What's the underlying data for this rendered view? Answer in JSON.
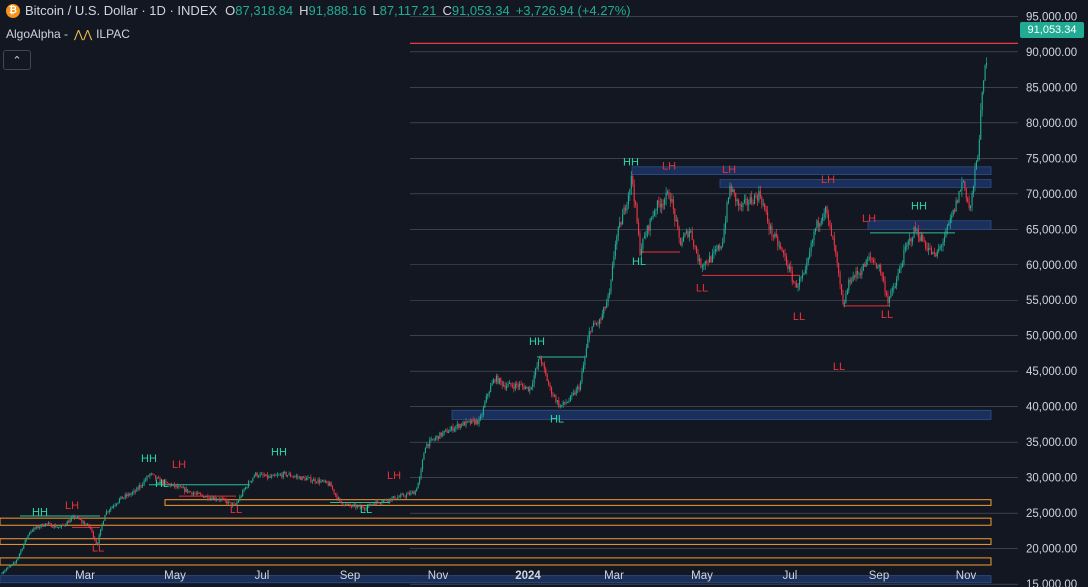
{
  "header": {
    "symbol": "Bitcoin / U.S. Dollar · 1D · INDEX",
    "coin_letter": "₿",
    "open_label": "O",
    "open": "87,318.84",
    "high_label": "H",
    "high": "91,888.16",
    "low_label": "L",
    "low": "87,117.21",
    "close_label": "C",
    "close": "91,053.34",
    "change": "+3,726.94 (+4.27%)"
  },
  "indicator": {
    "author": "AlgoAlpha -",
    "icon": "⋀⋀",
    "name": "ILPAC"
  },
  "collapse_icon": "⌃",
  "colors": {
    "up": "#22ab94",
    "down": "#f23645",
    "ob_blue": "#1e3a6e",
    "ob_orange": "#f59c2c",
    "label_green": "#26d9a5",
    "label_red": "#e8303a",
    "grid": "#d1d4dc"
  },
  "chart_data": {
    "type": "candlestick",
    "title": "Bitcoin / U.S. Dollar · 1D · INDEX",
    "x_ticks": [
      "Mar",
      "May",
      "Jul",
      "Sep",
      "Nov",
      "2024",
      "Mar",
      "May",
      "Jul",
      "Sep",
      "Nov"
    ],
    "y_ticks": [
      "15,000.00",
      "20,000.00",
      "25,000.00",
      "30,000.00",
      "35,000.00",
      "40,000.00",
      "45,000.00",
      "50,000.00",
      "55,000.00",
      "60,000.00",
      "65,000.00",
      "70,000.00",
      "75,000.00",
      "80,000.00",
      "85,000.00",
      "90,000.00",
      "95,000.00"
    ],
    "y_tick_values": [
      15000,
      20000,
      25000,
      30000,
      35000,
      40000,
      45000,
      50000,
      55000,
      60000,
      65000,
      70000,
      75000,
      80000,
      85000,
      90000,
      95000
    ],
    "ylim": [
      14600,
      97300
    ],
    "x_range": [
      0,
      1018
    ],
    "last_price": 91053.34,
    "last_price_label": "91,053.34",
    "price_path": [
      [
        0,
        16500
      ],
      [
        15,
        18000
      ],
      [
        30,
        22500
      ],
      [
        45,
        23500
      ],
      [
        60,
        23000
      ],
      [
        75,
        24500
      ],
      [
        90,
        23000
      ],
      [
        97,
        20500
      ],
      [
        105,
        25000
      ],
      [
        120,
        27000
      ],
      [
        135,
        28000
      ],
      [
        150,
        30500
      ],
      [
        160,
        29500
      ],
      [
        170,
        29000
      ],
      [
        180,
        28500
      ],
      [
        200,
        27500
      ],
      [
        220,
        27000
      ],
      [
        235,
        26000
      ],
      [
        245,
        28500
      ],
      [
        255,
        30500
      ],
      [
        270,
        30000
      ],
      [
        285,
        30500
      ],
      [
        300,
        30000
      ],
      [
        320,
        29500
      ],
      [
        330,
        29000
      ],
      [
        340,
        26500
      ],
      [
        350,
        26000
      ],
      [
        365,
        25800
      ],
      [
        375,
        26500
      ],
      [
        390,
        27000
      ],
      [
        405,
        27500
      ],
      [
        415,
        28000
      ],
      [
        420,
        30000
      ],
      [
        425,
        34500
      ],
      [
        440,
        36000
      ],
      [
        460,
        37500
      ],
      [
        480,
        38000
      ],
      [
        488,
        42000
      ],
      [
        495,
        44000
      ],
      [
        505,
        43000
      ],
      [
        520,
        43000
      ],
      [
        530,
        42500
      ],
      [
        540,
        47000
      ],
      [
        550,
        42500
      ],
      [
        560,
        40000
      ],
      [
        570,
        41000
      ],
      [
        580,
        43000
      ],
      [
        590,
        51000
      ],
      [
        600,
        52000
      ],
      [
        610,
        56000
      ],
      [
        615,
        63000
      ],
      [
        625,
        68000
      ],
      [
        632,
        72500
      ],
      [
        640,
        62000
      ],
      [
        655,
        68000
      ],
      [
        670,
        70000
      ],
      [
        680,
        63000
      ],
      [
        690,
        65000
      ],
      [
        700,
        60000
      ],
      [
        712,
        61000
      ],
      [
        722,
        63000
      ],
      [
        730,
        71000
      ],
      [
        740,
        68000
      ],
      [
        750,
        69000
      ],
      [
        760,
        70000
      ],
      [
        770,
        65000
      ],
      [
        785,
        61000
      ],
      [
        795,
        57000
      ],
      [
        805,
        58500
      ],
      [
        815,
        65000
      ],
      [
        825,
        68000
      ],
      [
        835,
        62000
      ],
      [
        843,
        54000
      ],
      [
        850,
        58000
      ],
      [
        860,
        59000
      ],
      [
        870,
        61000
      ],
      [
        880,
        59500
      ],
      [
        888,
        55000
      ],
      [
        895,
        57000
      ],
      [
        905,
        62000
      ],
      [
        915,
        65000
      ],
      [
        925,
        63000
      ],
      [
        935,
        61000
      ],
      [
        945,
        64000
      ],
      [
        955,
        68000
      ],
      [
        963,
        72000
      ],
      [
        970,
        67500
      ],
      [
        978,
        76000
      ],
      [
        983,
        85000
      ],
      [
        988,
        91000
      ]
    ],
    "order_blocks_blue": [
      [
        452,
        991,
        39500,
        38200
      ],
      [
        632,
        991,
        73800,
        72700
      ],
      [
        720,
        991,
        72000,
        70900
      ],
      [
        868,
        991,
        66200,
        65000
      ],
      [
        0,
        991,
        16200,
        15200
      ]
    ],
    "order_blocks_orange": [
      [
        165,
        991,
        26900,
        26100
      ],
      [
        0,
        991,
        24300,
        23300
      ],
      [
        0,
        991,
        21400,
        20600
      ],
      [
        0,
        991,
        18700,
        17700
      ]
    ],
    "structure_labels": [
      {
        "text": "HH",
        "x": 40,
        "y": 24700,
        "color": "green"
      },
      {
        "text": "LH",
        "x": 72,
        "y": 25600,
        "color": "red"
      },
      {
        "text": "LL",
        "x": 98,
        "y": 19600,
        "color": "red"
      },
      {
        "text": "HH",
        "x": 149,
        "y": 32200,
        "color": "green"
      },
      {
        "text": "LH",
        "x": 179,
        "y": 31400,
        "color": "red"
      },
      {
        "text": "HL",
        "x": 162,
        "y": 28700,
        "color": "green"
      },
      {
        "text": "LL",
        "x": 236,
        "y": 25000,
        "color": "red"
      },
      {
        "text": "HH",
        "x": 279,
        "y": 33100,
        "color": "green"
      },
      {
        "text": "LL",
        "x": 366,
        "y": 25000,
        "color": "green"
      },
      {
        "text": "LH",
        "x": 394,
        "y": 29800,
        "color": "red"
      },
      {
        "text": "HH",
        "x": 537,
        "y": 48700,
        "color": "green"
      },
      {
        "text": "HL",
        "x": 557,
        "y": 37800,
        "color": "green"
      },
      {
        "text": "HH",
        "x": 631,
        "y": 74000,
        "color": "green"
      },
      {
        "text": "LH",
        "x": 669,
        "y": 73400,
        "color": "red"
      },
      {
        "text": "HL",
        "x": 639,
        "y": 60000,
        "color": "green"
      },
      {
        "text": "LH",
        "x": 729,
        "y": 72900,
        "color": "red"
      },
      {
        "text": "LL",
        "x": 702,
        "y": 56200,
        "color": "red"
      },
      {
        "text": "LH",
        "x": 828,
        "y": 71500,
        "color": "red"
      },
      {
        "text": "LL",
        "x": 799,
        "y": 52200,
        "color": "red"
      },
      {
        "text": "LL",
        "x": 839,
        "y": 45200,
        "color": "red"
      },
      {
        "text": "LH",
        "x": 869,
        "y": 66000,
        "color": "red"
      },
      {
        "text": "HH",
        "x": 919,
        "y": 67800,
        "color": "green"
      },
      {
        "text": "LL",
        "x": 887,
        "y": 52500,
        "color": "red"
      }
    ],
    "structure_lines": [
      {
        "x1": 20,
        "x2": 100,
        "y": 24600,
        "color": "green"
      },
      {
        "x1": 72,
        "x2": 100,
        "y": 23000,
        "color": "red"
      },
      {
        "x1": 149,
        "x2": 250,
        "y": 29000,
        "color": "green"
      },
      {
        "x1": 179,
        "x2": 236,
        "y": 27400,
        "color": "red"
      },
      {
        "x1": 330,
        "x2": 390,
        "y": 26500,
        "color": "green"
      },
      {
        "x1": 537,
        "x2": 585,
        "y": 47000,
        "color": "green"
      },
      {
        "x1": 640,
        "x2": 680,
        "y": 61800,
        "color": "red"
      },
      {
        "x1": 702,
        "x2": 800,
        "y": 58500,
        "color": "red"
      },
      {
        "x1": 843,
        "x2": 890,
        "y": 54200,
        "color": "red"
      },
      {
        "x1": 870,
        "x2": 955,
        "y": 64500,
        "color": "green"
      }
    ],
    "price_line_color": "#f23645"
  }
}
